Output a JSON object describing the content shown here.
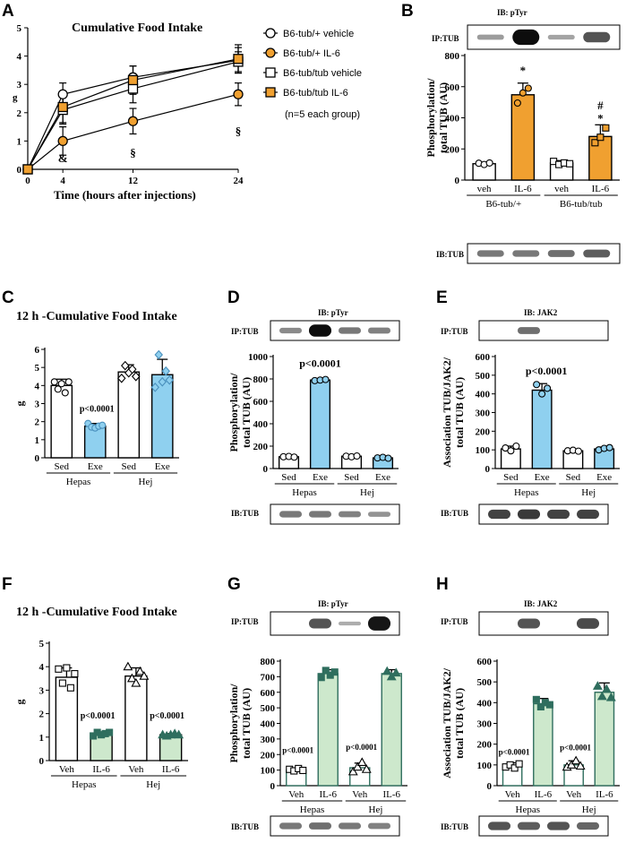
{
  "colors": {
    "orange": "#f0a030",
    "blue": "#8fd0ef",
    "green": "#cde8cc",
    "green_dark": "#2f6e5e",
    "blue_dark": "#4a90bd"
  },
  "panels": {
    "A": "A",
    "B": "B",
    "C": "C",
    "D": "D",
    "E": "E",
    "F": "F",
    "G": "G",
    "H": "H"
  },
  "legendA": {
    "items": [
      "B6-tub/+ vehicle",
      "B6-tub/+ IL-6",
      "B6-tub/tub vehicle",
      "B6-tub/tub IL-6"
    ],
    "note": "(n=5 each group)"
  },
  "chart_data": [
    {
      "id": "A",
      "type": "line",
      "title": "Cumulative Food Intake",
      "xlabel": "Time (hours after injections)",
      "ylabel": "g",
      "x": [
        0,
        4,
        12,
        24
      ],
      "xticks": [
        "0",
        "4",
        "12",
        "24"
      ],
      "yticks": [
        "0",
        "1",
        "2",
        "3",
        "4",
        "5"
      ],
      "ylim": [
        0,
        5
      ],
      "series": [
        {
          "name": "B6-tub/+ vehicle",
          "marker": "circle-open",
          "values": [
            0,
            2.65,
            3.25,
            3.85
          ],
          "err": [
            0,
            0.4,
            0.4,
            0.45
          ]
        },
        {
          "name": "B6-tub/+ IL-6",
          "marker": "circle-orange",
          "values": [
            0,
            1.0,
            1.7,
            2.65
          ],
          "err": [
            0,
            0.5,
            0.45,
            0.4
          ]
        },
        {
          "name": "B6-tub/tub vehicle",
          "marker": "square-open",
          "values": [
            0,
            2.1,
            2.85,
            3.8
          ],
          "err": [
            0,
            0.5,
            0.5,
            0.35
          ]
        },
        {
          "name": "B6-tub/tub IL-6",
          "marker": "square-orange",
          "values": [
            0,
            2.2,
            3.15,
            3.9
          ],
          "err": [
            0,
            0.55,
            0.5,
            0.5
          ]
        }
      ],
      "annotations": [
        "&",
        "§",
        "§"
      ]
    },
    {
      "id": "B",
      "type": "bar",
      "ylabel": "Phosphorylation/ total TUB (AU)",
      "categories": [
        "veh",
        "IL-6",
        "veh",
        "IL-6"
      ],
      "groups": [
        "B6-tub/+",
        "B6-tub/tub"
      ],
      "values": [
        105,
        548,
        110,
        280
      ],
      "err": [
        8,
        75,
        15,
        75
      ],
      "yticks": [
        "0",
        "200",
        "400",
        "600",
        "800"
      ],
      "ylim": [
        0,
        800
      ],
      "marks": [
        "*",
        "#",
        "*"
      ]
    },
    {
      "id": "C",
      "type": "bar",
      "title": "12 h -Cumulative Food Intake",
      "ylabel": "g",
      "categories": [
        "Sed",
        "Exe",
        "Sed",
        "Exe"
      ],
      "groups": [
        "Hepas",
        "Hej"
      ],
      "values": [
        4.0,
        1.75,
        4.75,
        4.6
      ],
      "err": [
        0.35,
        0.15,
        0.4,
        0.85
      ],
      "yticks": [
        "0",
        "1",
        "2",
        "3",
        "4",
        "5",
        "6"
      ],
      "ylim": [
        0,
        6
      ],
      "pval": "p<0.0001"
    },
    {
      "id": "D",
      "type": "bar",
      "ylabel": "Phosphorylation/ total TUB (AU)",
      "categories": [
        "Sed",
        "Exe",
        "Sed",
        "Exe"
      ],
      "groups": [
        "Hepas",
        "Hej"
      ],
      "values": [
        105,
        790,
        110,
        95
      ],
      "err": [
        5,
        5,
        8,
        5
      ],
      "yticks": [
        "0",
        "200",
        "400",
        "600",
        "800",
        "1000"
      ],
      "ylim": [
        0,
        1000
      ],
      "pval": "p<0.0001"
    },
    {
      "id": "E",
      "type": "bar",
      "ylabel": "Association TUB/JAK2/ total TUB (AU)",
      "categories": [
        "Sed",
        "Exe",
        "Sed",
        "Exe"
      ],
      "groups": [
        "Hepas",
        "Hej"
      ],
      "values": [
        105,
        420,
        95,
        105
      ],
      "err": [
        15,
        35,
        5,
        10
      ],
      "yticks": [
        "0",
        "100",
        "200",
        "300",
        "400",
        "500",
        "600"
      ],
      "ylim": [
        0,
        600
      ],
      "pval": "p<0.0001"
    },
    {
      "id": "F",
      "type": "bar",
      "title": "12 h -Cumulative Food Intake",
      "ylabel": "g",
      "categories": [
        "Veh",
        "IL-6",
        "Veh",
        "IL-6"
      ],
      "groups": [
        "Hepas",
        "Hej"
      ],
      "values": [
        3.55,
        1.15,
        3.6,
        1.1
      ],
      "err": [
        0.4,
        0.07,
        0.35,
        0.05
      ],
      "yticks": [
        "0",
        "1",
        "2",
        "3",
        "4",
        "5"
      ],
      "ylim": [
        0,
        5
      ],
      "pvals": [
        "p<0.0001",
        "p<0.0001"
      ]
    },
    {
      "id": "G",
      "type": "bar",
      "ylabel": "Phosphorylation/ total TUB (AU)",
      "categories": [
        "Veh",
        "IL-6",
        "Veh",
        "IL-6"
      ],
      "groups": [
        "Hepas",
        "Hej"
      ],
      "values": [
        100,
        720,
        115,
        720
      ],
      "err": [
        10,
        25,
        30,
        25
      ],
      "yticks": [
        "0",
        "100",
        "200",
        "300",
        "400",
        "500",
        "600",
        "700",
        "800"
      ],
      "ylim": [
        0,
        800
      ],
      "pvals": [
        "p<0.0001",
        "p<0.0001"
      ]
    },
    {
      "id": "H",
      "type": "bar",
      "ylabel": "Association TUB/JAK2/ total TUB (AU)",
      "categories": [
        "Veh",
        "IL-6",
        "Veh",
        "IL-6"
      ],
      "groups": [
        "Hepas",
        "Hej"
      ],
      "values": [
        95,
        395,
        100,
        450
      ],
      "err": [
        15,
        25,
        20,
        45
      ],
      "yticks": [
        "0",
        "100",
        "200",
        "300",
        "400",
        "500",
        "600"
      ],
      "ylim": [
        0,
        600
      ],
      "pvals": [
        "p<0.0001",
        "p<0.0001"
      ]
    }
  ],
  "blots": {
    "B": {
      "top_ip": "IP:TUB",
      "top_ib": "IB: pTyr",
      "bottom": "IB:TUB"
    },
    "D": {
      "top_ip": "IP:TUB",
      "top_ib": "IB: pTyr",
      "bottom": "IB:TUB"
    },
    "E": {
      "top_ip": "IP:TUB",
      "top_ib": "IB: JAK2",
      "bottom": "IB:TUB"
    },
    "G": {
      "top_ip": "IP:TUB",
      "top_ib": "IB: pTyr",
      "bottom": "IB:TUB"
    },
    "H": {
      "top_ip": "IP:TUB",
      "top_ib": "IB: JAK2",
      "bottom": "IB:TUB"
    }
  }
}
